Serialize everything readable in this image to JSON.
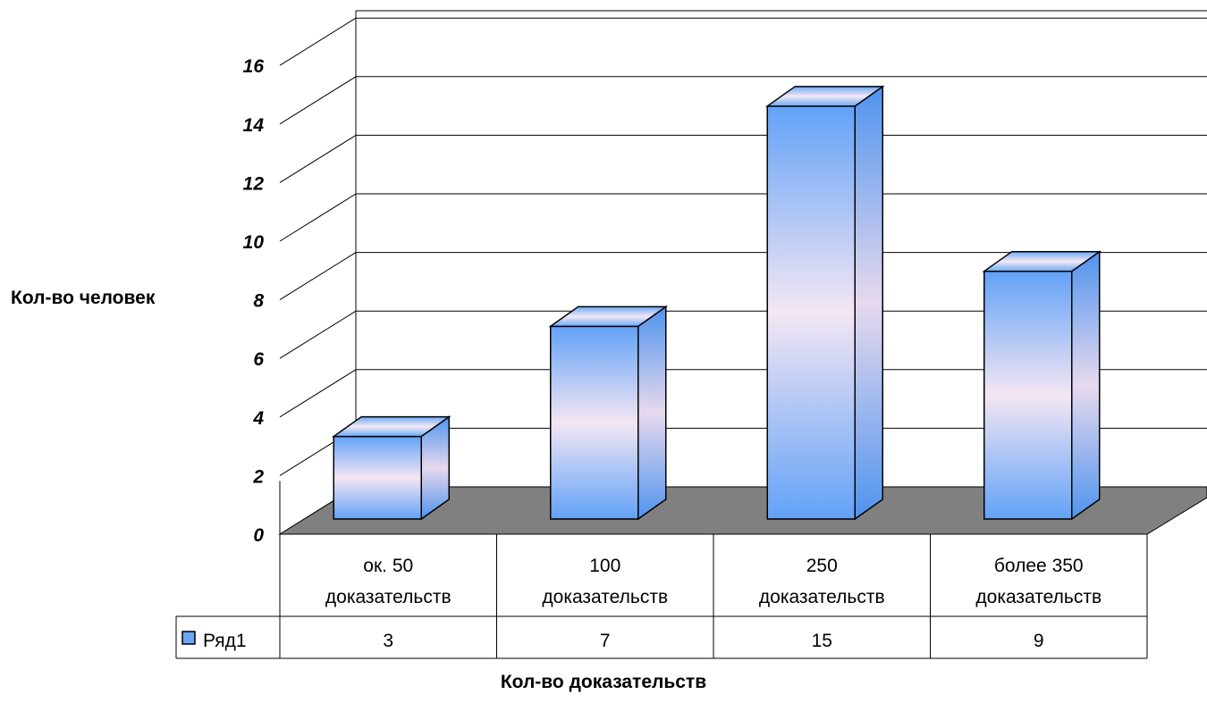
{
  "chart_data": {
    "type": "bar",
    "style": "3d-column",
    "categories": [
      [
        "ок. 50",
        "доказательств"
      ],
      [
        "100",
        "доказательств"
      ],
      [
        "250",
        "доказательств"
      ],
      [
        "более 350",
        "доказательств"
      ]
    ],
    "series": [
      {
        "name": "Ряд1",
        "values": [
          3,
          7,
          15,
          9
        ]
      }
    ],
    "value_labels": [
      "3",
      "7",
      "15",
      "9"
    ],
    "xlabel": "Кол-во доказательств",
    "ylabel": "Кол-во человек",
    "ylim": [
      0,
      16
    ],
    "yticks": [
      "0",
      "2",
      "4",
      "6",
      "8",
      "10",
      "12",
      "14",
      "16"
    ],
    "grid": true,
    "data_table": true,
    "colors": {
      "bar": "#6aa6f5",
      "bar_mid": "#f3e6f2",
      "floor": "#808080",
      "grid": "#000000"
    }
  }
}
